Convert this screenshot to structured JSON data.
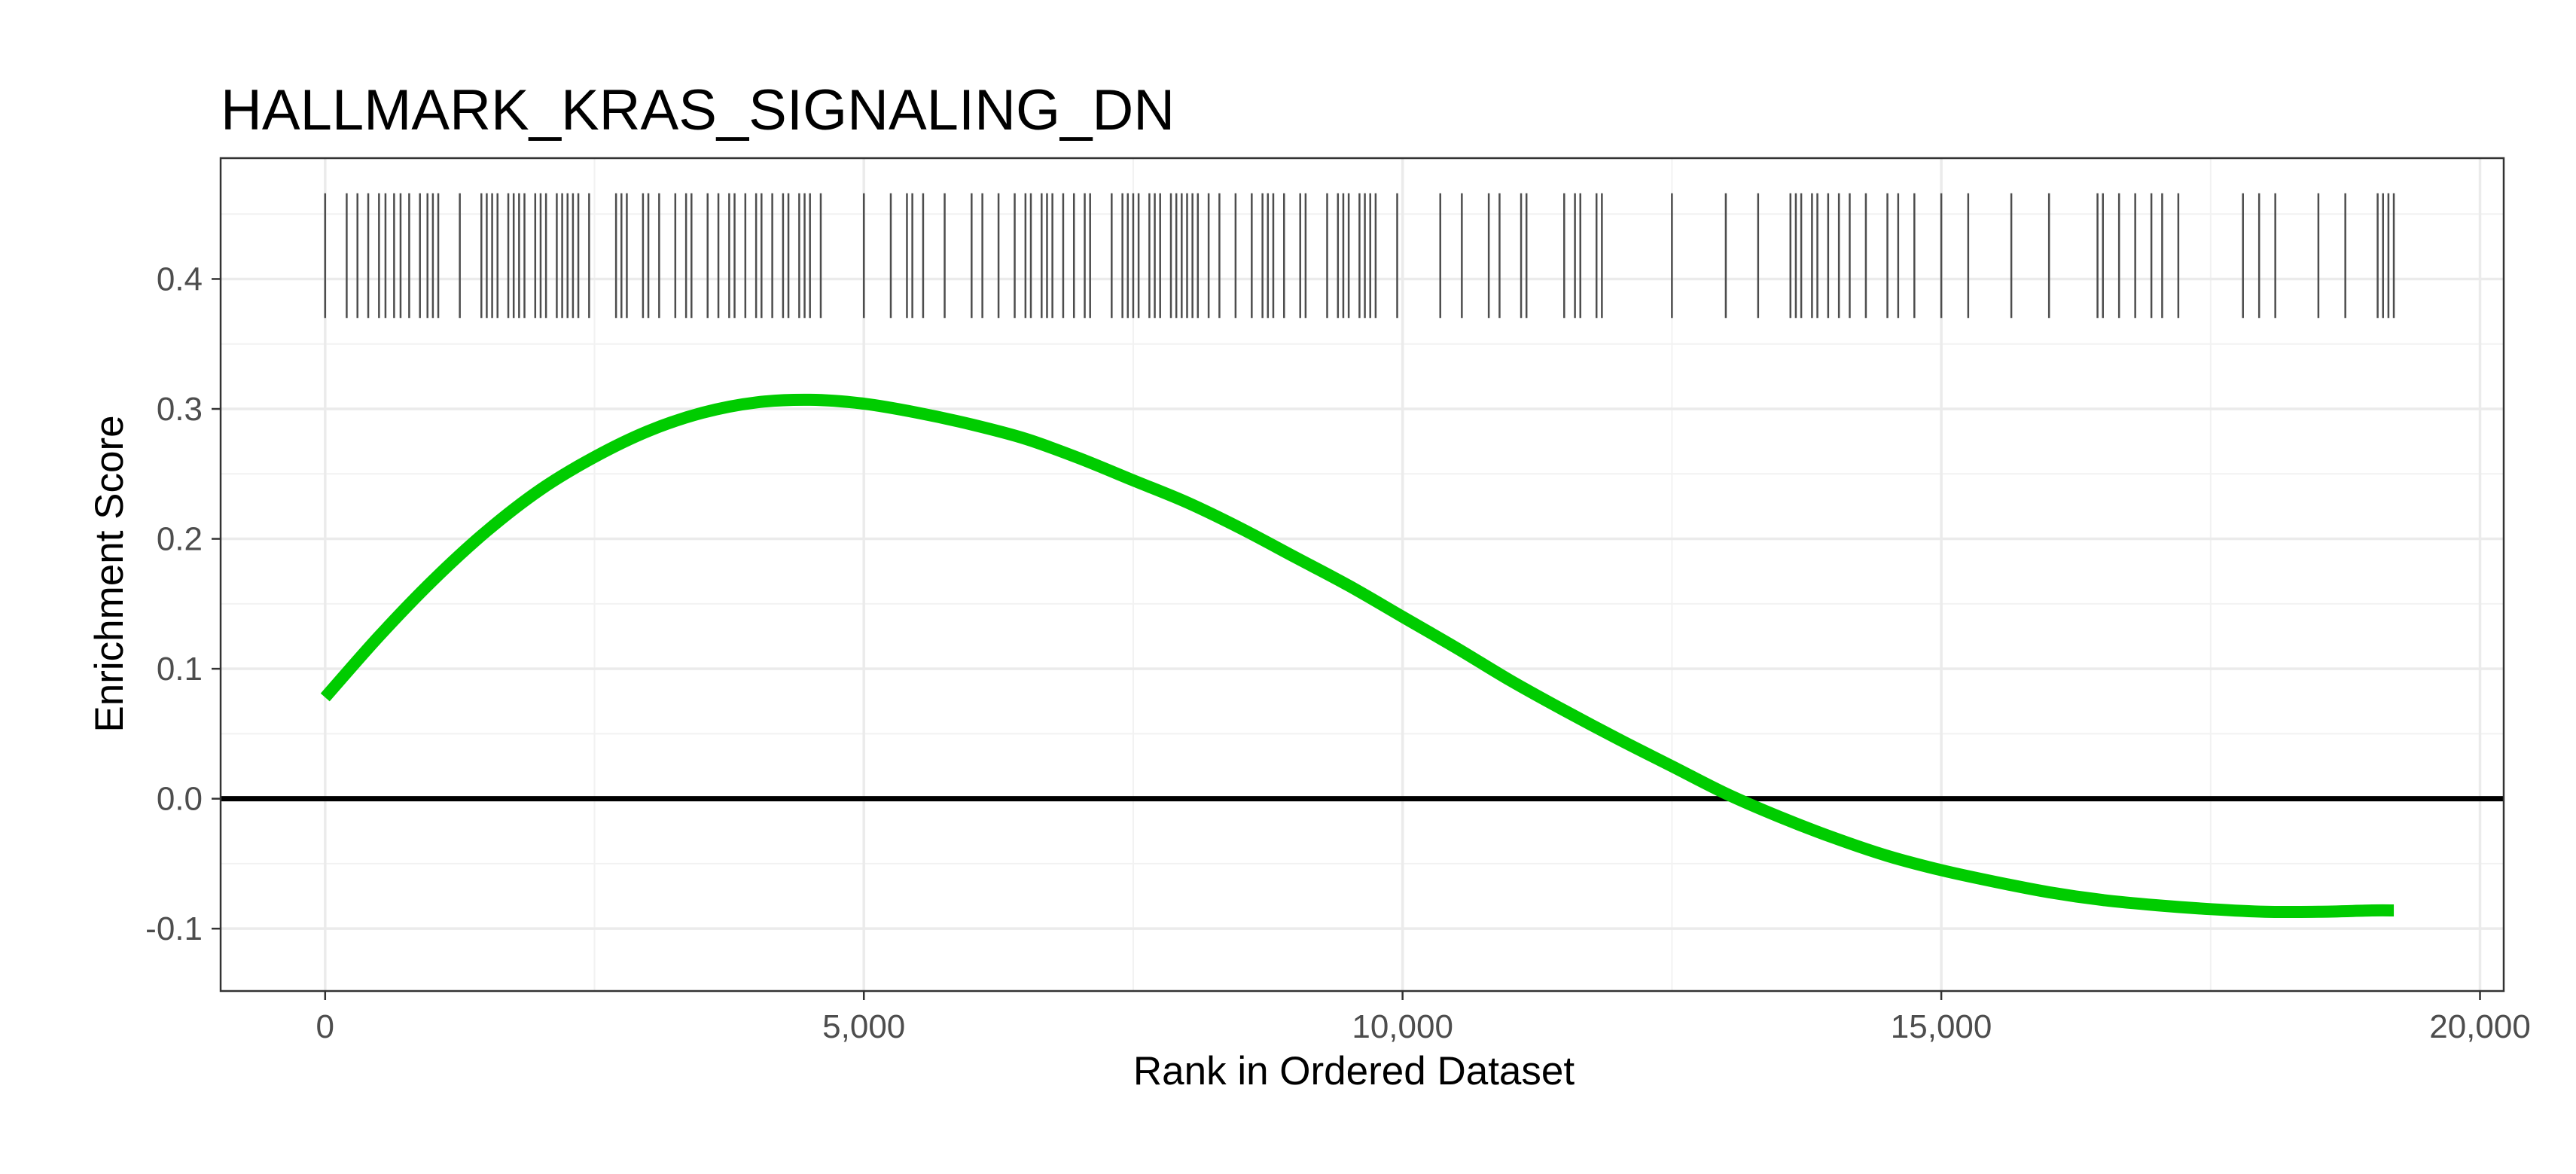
{
  "chart_data": {
    "type": "line",
    "title": "HALLMARK_KRAS_SIGNALING_DN",
    "xlabel": "Rank in Ordered Dataset",
    "ylabel": "Enrichment Score",
    "xlim": [
      -970,
      20220
    ],
    "ylim": [
      -0.148,
      0.493
    ],
    "x_ticks": [
      0,
      5000,
      10000,
      15000,
      20000
    ],
    "x_tick_labels": [
      "0",
      "5,000",
      "10,000",
      "15,000",
      "20,000"
    ],
    "y_ticks": [
      -0.1,
      0.0,
      0.1,
      0.2,
      0.3,
      0.4
    ],
    "y_tick_labels": [
      "-0.1",
      "0.0",
      "0.1",
      "0.2",
      "0.3",
      "0.4"
    ],
    "grid": true,
    "reference_line_y": 0.0,
    "series": [
      {
        "color": "#00cc00",
        "x": [
          0,
          500,
          1000,
          1500,
          2000,
          2500,
          3000,
          3500,
          4000,
          4500,
          5000,
          5500,
          6000,
          6500,
          7000,
          7500,
          8000,
          8500,
          9000,
          9500,
          10000,
          10500,
          11000,
          11500,
          12000,
          12500,
          13000,
          13500,
          14000,
          14500,
          15000,
          15500,
          16000,
          16500,
          17000,
          17500,
          18000,
          18500,
          19000,
          19200
        ],
        "y": [
          0.078,
          0.125,
          0.168,
          0.206,
          0.238,
          0.263,
          0.283,
          0.297,
          0.305,
          0.307,
          0.304,
          0.297,
          0.288,
          0.277,
          0.262,
          0.245,
          0.228,
          0.208,
          0.186,
          0.164,
          0.14,
          0.116,
          0.091,
          0.068,
          0.046,
          0.025,
          0.004,
          -0.014,
          -0.03,
          -0.044,
          -0.055,
          -0.064,
          -0.072,
          -0.078,
          -0.082,
          -0.085,
          -0.087,
          -0.087,
          -0.086,
          -0.086
        ]
      }
    ],
    "rug": {
      "y_range": [
        0.37,
        0.466
      ],
      "color": "#4d4d4d",
      "positions": [
        0,
        200,
        300,
        400,
        500,
        560,
        640,
        700,
        780,
        880,
        950,
        1000,
        1050,
        1250,
        1450,
        1500,
        1550,
        1600,
        1700,
        1750,
        1800,
        1850,
        1950,
        2000,
        2050,
        2150,
        2200,
        2250,
        2300,
        2350,
        2450,
        2700,
        2750,
        2800,
        2950,
        3000,
        3100,
        3250,
        3350,
        3400,
        3550,
        3650,
        3750,
        3800,
        3900,
        4000,
        4050,
        4150,
        4250,
        4300,
        4400,
        4450,
        4500,
        4600,
        5000,
        5250,
        5400,
        5450,
        5550,
        5750,
        6000,
        6100,
        6250,
        6400,
        6500,
        6550,
        6650,
        6700,
        6750,
        6850,
        6950,
        7050,
        7100,
        7300,
        7400,
        7450,
        7500,
        7550,
        7650,
        7700,
        7750,
        7850,
        7900,
        7950,
        8000,
        8050,
        8100,
        8200,
        8300,
        8450,
        8600,
        8700,
        8750,
        8800,
        8900,
        9050,
        9100,
        9300,
        9400,
        9450,
        9500,
        9600,
        9650,
        9700,
        9750,
        9950,
        10350,
        10550,
        10800,
        10900,
        11100,
        11150,
        11500,
        11600,
        11650,
        11800,
        11850,
        12500,
        13000,
        13300,
        13600,
        13650,
        13700,
        13800,
        13850,
        13950,
        14050,
        14150,
        14300,
        14500,
        14600,
        14750,
        15000,
        15250,
        15650,
        16000,
        16450,
        16500,
        16650,
        16800,
        16950,
        17050,
        17200,
        17800,
        17950,
        18100,
        18500,
        18750,
        19050,
        19100,
        19150,
        19200
      ]
    }
  }
}
